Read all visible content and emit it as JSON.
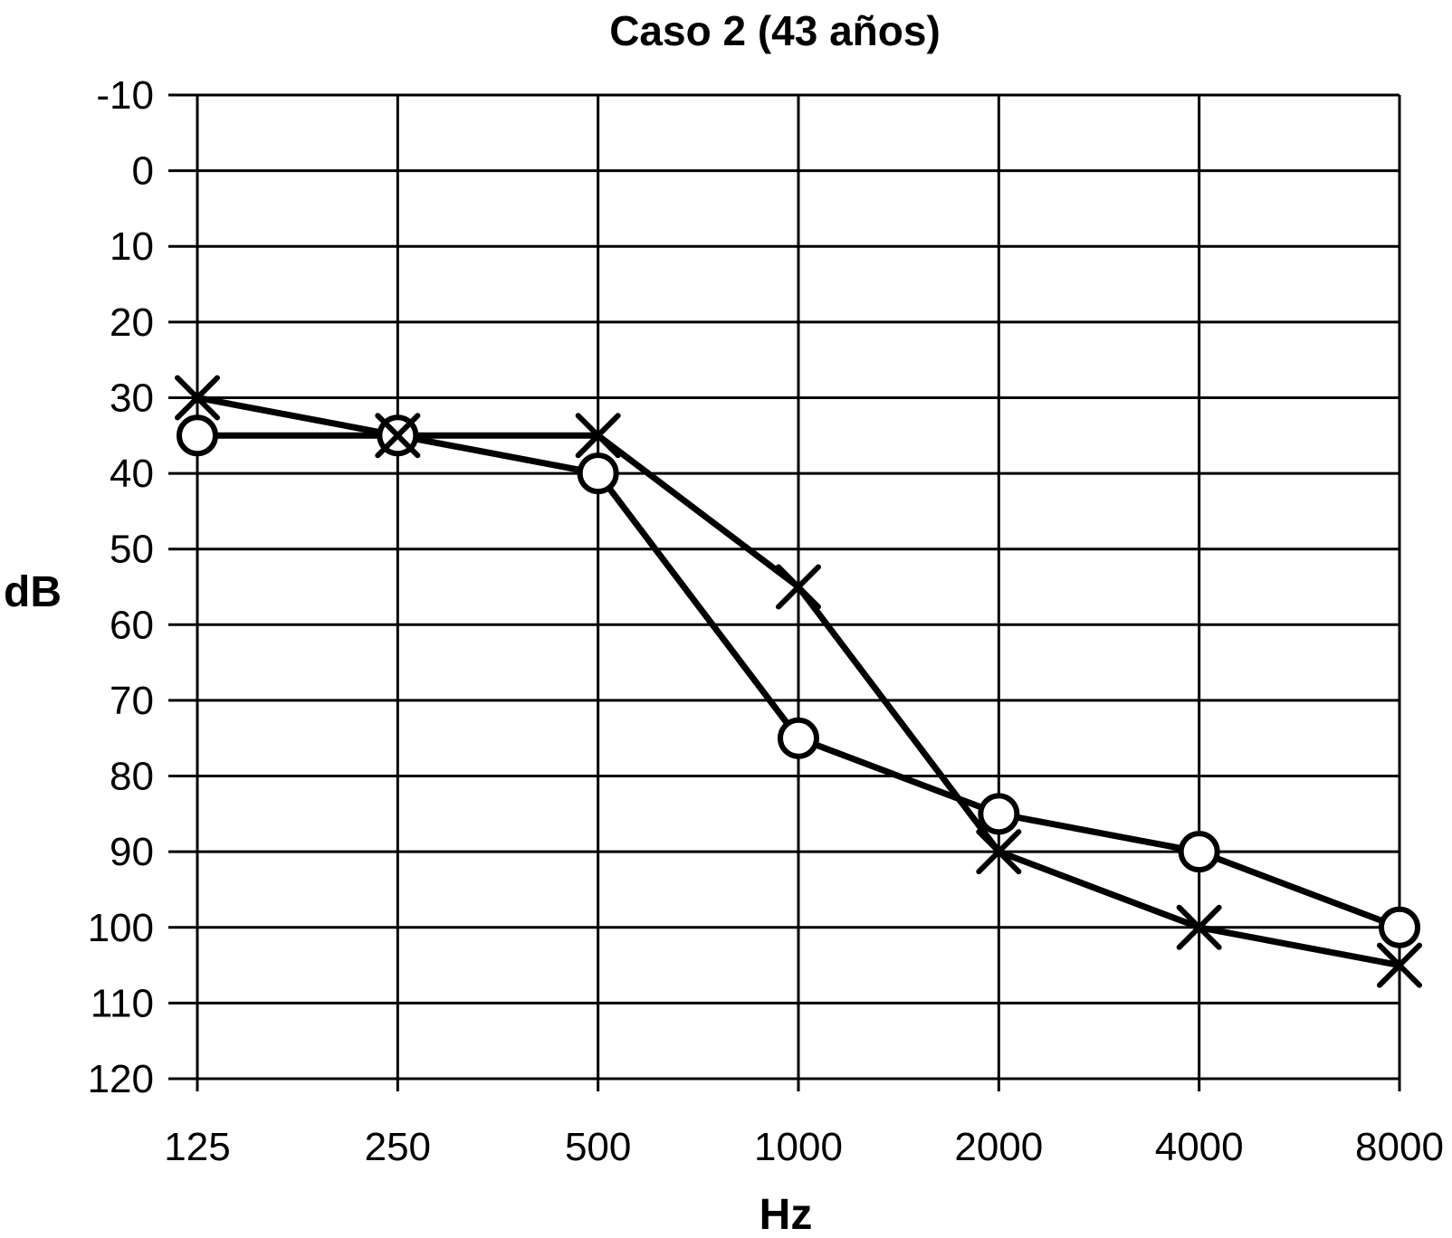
{
  "chart_data": {
    "type": "line",
    "title": "Caso 2 (43 años)",
    "xlabel": "Hz",
    "ylabel": "dB",
    "categories": [
      "125",
      "250",
      "500",
      "1000",
      "2000",
      "4000",
      "8000"
    ],
    "y_ticks": [
      "-10",
      "0",
      "10",
      "20",
      "30",
      "40",
      "50",
      "60",
      "70",
      "80",
      "90",
      "100",
      "110",
      "120"
    ],
    "ylim": [
      -10,
      120
    ],
    "y_inverted": true,
    "grid": true,
    "series": [
      {
        "marker": "circle",
        "values": [
          35,
          35,
          40,
          75,
          85,
          90,
          100
        ]
      },
      {
        "marker": "cross",
        "values": [
          30,
          35,
          35,
          55,
          90,
          100,
          105
        ]
      }
    ],
    "colors": {
      "line": "#000000",
      "background": "#ffffff"
    }
  }
}
